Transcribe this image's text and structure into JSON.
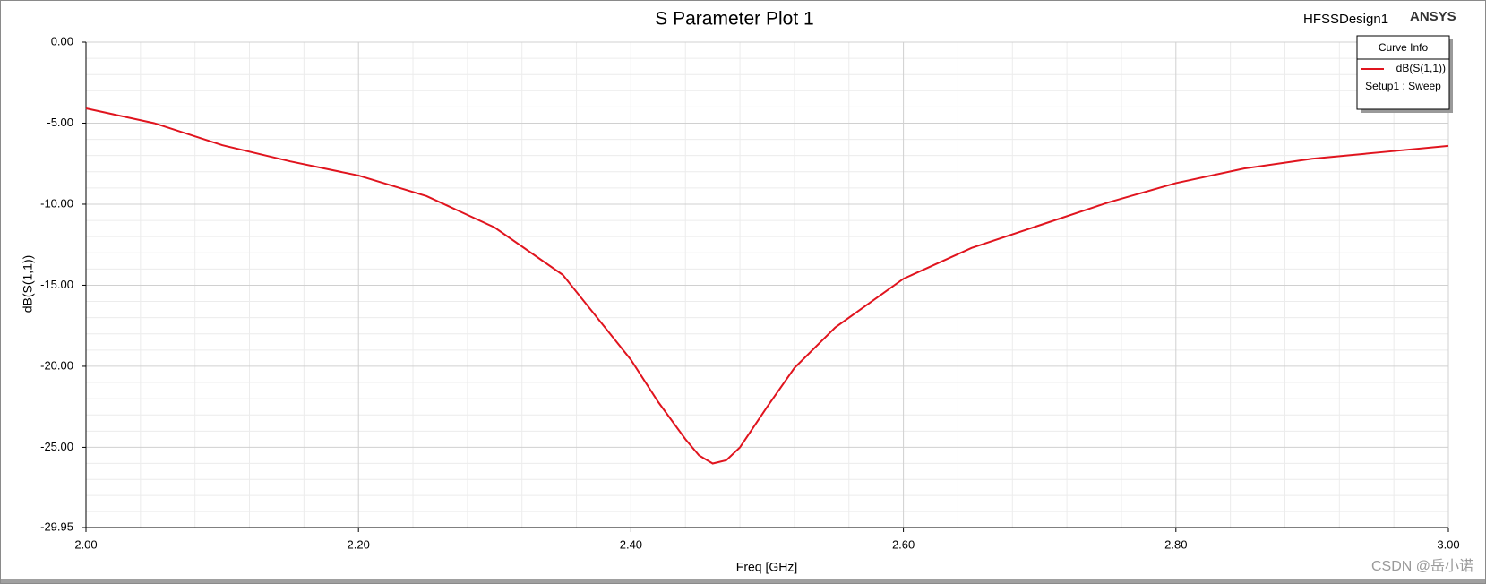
{
  "chart_data": {
    "type": "line",
    "title": "S Parameter Plot 1",
    "design_label": "HFSSDesign1",
    "brand": "ANSYS",
    "watermark": "CSDN @岳小诺",
    "xlabel": "Freq [GHz]",
    "ylabel": "dB(S(1,1))",
    "legend_title": "Curve Info",
    "legend_subtitle": "Setup1 : Sweep",
    "legend": "upper right",
    "grid": true,
    "xlim": [
      2,
      3
    ],
    "xticks": [
      {
        "value": 2,
        "label": "2.00"
      },
      {
        "value": 2.2,
        "label": "2.20"
      },
      {
        "value": 2.4,
        "label": "2.40"
      },
      {
        "value": 2.6,
        "label": "2.60"
      },
      {
        "value": 2.8,
        "label": "2.80"
      },
      {
        "value": 3,
        "label": "3.00"
      }
    ],
    "ylim": [
      -29.95,
      0
    ],
    "yticks": [
      {
        "value": 0,
        "label": "0.00"
      },
      {
        "value": -5,
        "label": "-5.00"
      },
      {
        "value": -10,
        "label": "-10.00"
      },
      {
        "value": -15,
        "label": "-15.00"
      },
      {
        "value": -20,
        "label": "-20.00"
      },
      {
        "value": -25,
        "label": "-25.00"
      },
      {
        "value": -29.95,
        "label": "-29.95"
      }
    ],
    "x": [
      2.0,
      2.05,
      2.1,
      2.15,
      2.2,
      2.25,
      2.3,
      2.35,
      2.4,
      2.42,
      2.44,
      2.45,
      2.46,
      2.47,
      2.48,
      2.5,
      2.52,
      2.55,
      2.6,
      2.65,
      2.7,
      2.75,
      2.8,
      2.85,
      2.9,
      2.95,
      3.0
    ],
    "series": [
      {
        "name": "dB(S(1,1))",
        "color": "#e0141e",
        "values": [
          -4.09,
          -5.0,
          -6.36,
          -7.36,
          -8.23,
          -9.5,
          -11.44,
          -14.36,
          -19.6,
          -22.2,
          -24.5,
          -25.5,
          -26.0,
          -25.8,
          -25.0,
          -22.5,
          -20.1,
          -17.6,
          -14.6,
          -12.7,
          -11.3,
          -9.9,
          -8.7,
          -7.8,
          -7.2,
          -6.8,
          -6.4
        ]
      }
    ]
  }
}
